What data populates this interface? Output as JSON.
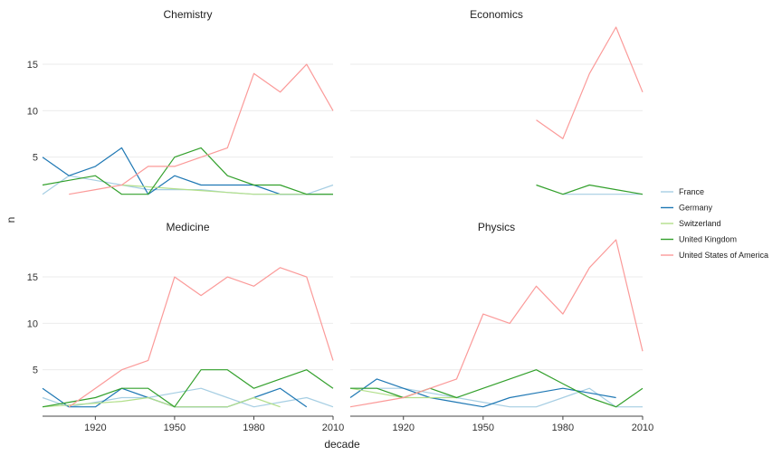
{
  "chart_data": {
    "type": "line",
    "facet_layout": "2x2 small multiples",
    "xlabel": "decade",
    "ylabel": "n",
    "x_ticks": [
      1920,
      1950,
      1980,
      2010
    ],
    "y_ticks": [
      5,
      10,
      15
    ],
    "xlim": [
      1900,
      2010
    ],
    "ylim": [
      0,
      19
    ],
    "grid": "horizontal major gridlines",
    "legend_position": "right",
    "legend": [
      {
        "name": "France",
        "color": "#a6cee3"
      },
      {
        "name": "Germany",
        "color": "#1f78b4"
      },
      {
        "name": "Switzerland",
        "color": "#b2df8a"
      },
      {
        "name": "United Kingdom",
        "color": "#33a02c"
      },
      {
        "name": "United States of America",
        "color": "#fb9a99"
      }
    ],
    "panels": [
      {
        "title": "Chemistry",
        "series": [
          {
            "name": "France",
            "x": [
              1900,
              1910,
              1920,
              1930,
              1940,
              1950,
              1960,
              1970,
              1980,
              1990,
              2000,
              2010
            ],
            "y": [
              1,
              3,
              2.5,
              2,
              1.5,
              1.5,
              1.5,
              1.2,
              1,
              1,
              1,
              2
            ]
          },
          {
            "name": "Germany",
            "x": [
              1900,
              1910,
              1920,
              1930,
              1940,
              1950,
              1960,
              1970,
              1980,
              1990,
              2000,
              2010
            ],
            "y": [
              5,
              3,
              4,
              6,
              1,
              3,
              2,
              2,
              2,
              1,
              1,
              1
            ]
          },
          {
            "name": "Switzerland",
            "x": [
              1930,
              1940,
              1950,
              1960,
              1970,
              1980,
              1990,
              2000,
              2010
            ],
            "y": [
              2,
              1.8,
              1.6,
              1.4,
              1.2,
              1,
              1,
              1,
              1
            ]
          },
          {
            "name": "United Kingdom",
            "x": [
              1900,
              1910,
              1920,
              1930,
              1940,
              1950,
              1960,
              1970,
              1980,
              1990,
              2000,
              2010
            ],
            "y": [
              2,
              2.5,
              3,
              1,
              1,
              5,
              6,
              3,
              2,
              2,
              1,
              1
            ]
          },
          {
            "name": "United States of America",
            "x": [
              1910,
              1920,
              1930,
              1940,
              1950,
              1960,
              1970,
              1980,
              1990,
              2000,
              2010
            ],
            "y": [
              1,
              1.5,
              2,
              4,
              4,
              5,
              6,
              14,
              12,
              15,
              10
            ]
          }
        ]
      },
      {
        "title": "Economics",
        "series": [
          {
            "name": "France",
            "x": [
              1980,
              1990,
              2000,
              2010
            ],
            "y": [
              1,
              1,
              1,
              1
            ]
          },
          {
            "name": "United Kingdom",
            "x": [
              1970,
              1980,
              1990,
              2000,
              2010
            ],
            "y": [
              2,
              1,
              2,
              1.5,
              1
            ]
          },
          {
            "name": "United States of America",
            "x": [
              1970,
              1980,
              1990,
              2000,
              2010
            ],
            "y": [
              9,
              7,
              14,
              19,
              12
            ]
          }
        ]
      },
      {
        "title": "Medicine",
        "series": [
          {
            "name": "France",
            "x": [
              1900,
              1910,
              1920,
              1930,
              1940,
              1950,
              1960,
              1970,
              1980,
              1990,
              2000,
              2010
            ],
            "y": [
              2,
              1,
              1.5,
              2,
              2,
              2.5,
              3,
              2,
              1,
              1.5,
              2,
              1
            ]
          },
          {
            "name": "Germany",
            "x": [
              1900,
              1910,
              1920,
              1930,
              1940,
              1950,
              1960,
              1970,
              1980,
              1990,
              2000
            ],
            "y": [
              3,
              1,
              1,
              3,
              2,
              1,
              1,
              1,
              2,
              3,
              1
            ]
          },
          {
            "name": "Switzerland",
            "x": [
              1900,
              1910,
              1920,
              1930,
              1940,
              1950,
              1960,
              1970,
              1980,
              1990
            ],
            "y": [
              1,
              1.2,
              1.4,
              1.6,
              2,
              1,
              1,
              1,
              2,
              1
            ]
          },
          {
            "name": "United Kingdom",
            "x": [
              1900,
              1910,
              1920,
              1930,
              1940,
              1950,
              1960,
              1970,
              1980,
              1990,
              2000,
              2010
            ],
            "y": [
              1,
              1.5,
              2,
              3,
              3,
              1,
              5,
              5,
              3,
              4,
              5,
              3
            ]
          },
          {
            "name": "United States of America",
            "x": [
              1910,
              1920,
              1930,
              1940,
              1950,
              1960,
              1970,
              1980,
              1990,
              2000,
              2010
            ],
            "y": [
              1,
              3,
              5,
              6,
              15,
              13,
              15,
              14,
              16,
              15,
              6
            ]
          }
        ]
      },
      {
        "title": "Physics",
        "series": [
          {
            "name": "France",
            "x": [
              1900,
              1910,
              1920,
              1930,
              1940,
              1950,
              1960,
              1970,
              1980,
              1990,
              2000,
              2010
            ],
            "y": [
              3,
              3,
              3,
              2.5,
              2,
              1.5,
              1,
              1,
              2,
              3,
              1,
              1
            ]
          },
          {
            "name": "Germany",
            "x": [
              1900,
              1910,
              1920,
              1930,
              1940,
              1950,
              1960,
              1970,
              1980,
              1990,
              2000
            ],
            "y": [
              2,
              4,
              3,
              2,
              1.5,
              1,
              2,
              2.5,
              3,
              2.5,
              2
            ]
          },
          {
            "name": "Switzerland",
            "x": [
              1900,
              1910,
              1920,
              1930,
              1940
            ],
            "y": [
              3,
              2.5,
              2,
              2,
              2
            ]
          },
          {
            "name": "United Kingdom",
            "x": [
              1900,
              1910,
              1920,
              1930,
              1940,
              1950,
              1960,
              1970,
              1980,
              1990,
              2000,
              2010
            ],
            "y": [
              3,
              3,
              2,
              3,
              2,
              3,
              4,
              5,
              3.5,
              2,
              1,
              3
            ]
          },
          {
            "name": "United States of America",
            "x": [
              1900,
              1910,
              1920,
              1930,
              1940,
              1950,
              1960,
              1970,
              1980,
              1990,
              2000,
              2010
            ],
            "y": [
              1,
              1.5,
              2,
              3,
              4,
              11,
              10,
              14,
              11,
              16,
              19,
              7
            ]
          }
        ]
      }
    ]
  }
}
